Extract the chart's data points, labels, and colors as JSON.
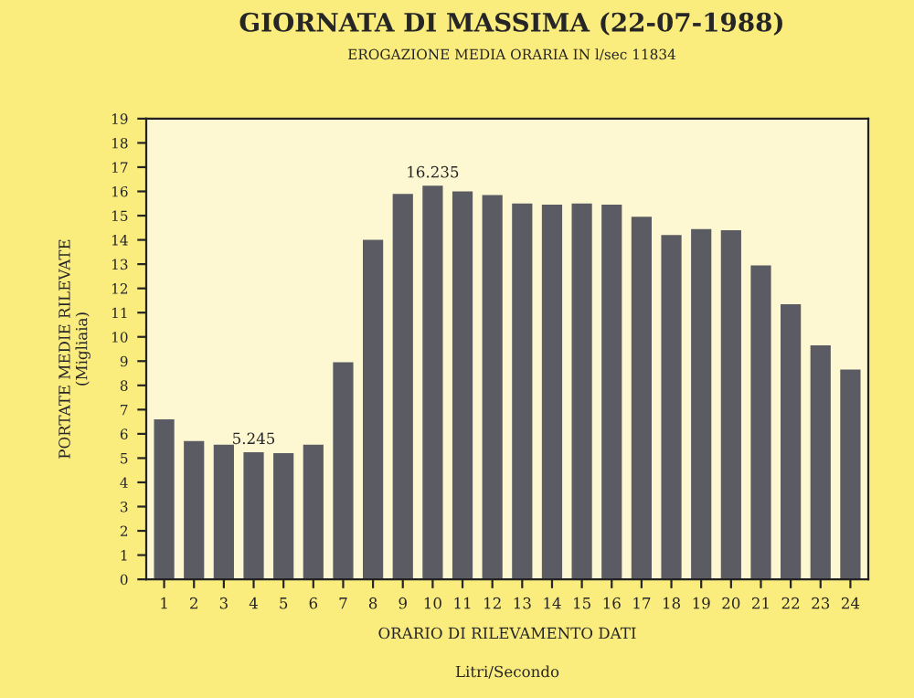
{
  "chart_data": {
    "type": "bar",
    "title": "GIORNATA DI MASSIMA (22-07-1988)",
    "subtitle": "EROGAZIONE MEDIA ORARIA IN l/sec 11834",
    "xlabel": "ORARIO DI RILEVAMENTO DATI",
    "ylabel": "PORTATE MEDIE RILEVATE\n(Migliaia)",
    "annotations": [
      "Litri/Secondo"
    ],
    "categories": [
      "1",
      "2",
      "3",
      "4",
      "5",
      "6",
      "7",
      "8",
      "9",
      "10",
      "11",
      "12",
      "13",
      "14",
      "15",
      "16",
      "17",
      "18",
      "19",
      "20",
      "21",
      "22",
      "23",
      "24"
    ],
    "values": [
      6.6,
      5.7,
      5.55,
      5.245,
      5.2,
      5.55,
      8.95,
      14.0,
      15.9,
      16.235,
      16.0,
      15.85,
      15.5,
      15.45,
      15.5,
      15.45,
      14.95,
      14.2,
      14.45,
      14.4,
      12.95,
      11.35,
      9.65,
      8.65
    ],
    "value_labels": [
      null,
      null,
      null,
      "5.245",
      null,
      null,
      null,
      null,
      null,
      "16.235",
      null,
      null,
      null,
      null,
      null,
      null,
      null,
      null,
      null,
      null,
      null,
      null,
      null,
      null
    ],
    "color": "#5b5b63",
    "ylim": [
      0,
      19
    ],
    "yticks": [
      0,
      1,
      2,
      3,
      4,
      5,
      6,
      7,
      8,
      9,
      10,
      11,
      12,
      13,
      14,
      15,
      16,
      17,
      18,
      19
    ],
    "grid": false
  }
}
